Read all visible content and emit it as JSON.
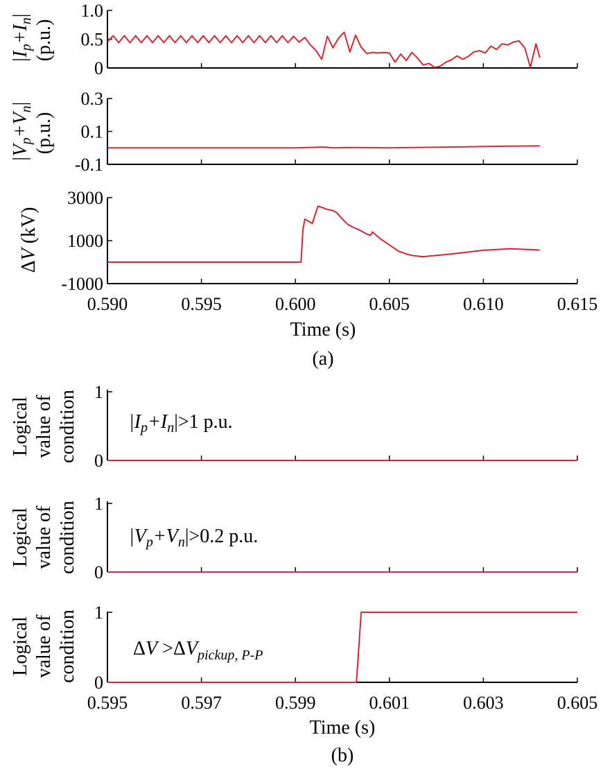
{
  "figure": {
    "caption_a": "(a)",
    "caption_b": "(b)"
  },
  "chart_data": [
    {
      "type": "line",
      "panel": "a1",
      "ylabel_top": "|I",
      "ylabel_sub_p": "p",
      "ylabel_plus": "+I",
      "ylabel_sub_n": "n",
      "ylabel_close": "|",
      "ylabel_unit": "(p.u.)",
      "xlim": [
        0.59,
        0.615
      ],
      "ylim": [
        0,
        1.0
      ],
      "yticks": [
        "1.0",
        "0.5",
        "0"
      ],
      "ytick_values": [
        1.0,
        0.5,
        0
      ],
      "color": "#d7262d",
      "series": [
        {
          "x": [
            0.59,
            0.5903,
            0.5906,
            0.5909,
            0.5912,
            0.5915,
            0.5918,
            0.5921,
            0.5924,
            0.5927,
            0.593,
            0.5933,
            0.5936,
            0.5939,
            0.5942,
            0.5945,
            0.5948,
            0.5951,
            0.5954,
            0.5957,
            0.596,
            0.5963,
            0.5966,
            0.5969,
            0.5972,
            0.5975,
            0.5978,
            0.5981,
            0.5984,
            0.5987,
            0.599,
            0.5993,
            0.5996,
            0.5999,
            0.6002,
            0.6005,
            0.6008,
            0.6011,
            0.6014,
            0.6017,
            0.602,
            0.6023,
            0.6026,
            0.6029,
            0.6032,
            0.6035,
            0.6038,
            0.6041,
            0.6044,
            0.6047,
            0.605,
            0.6053,
            0.6056,
            0.6059,
            0.6062,
            0.6065,
            0.6068,
            0.6071,
            0.6074,
            0.6077,
            0.608,
            0.6083,
            0.6086,
            0.6089,
            0.6092,
            0.6095,
            0.6098,
            0.6101,
            0.6104,
            0.6107,
            0.611,
            0.6113,
            0.6116,
            0.6119,
            0.6122,
            0.6125,
            0.6128,
            0.613
          ],
          "y": [
            0.45,
            0.56,
            0.44,
            0.56,
            0.44,
            0.56,
            0.44,
            0.56,
            0.44,
            0.56,
            0.44,
            0.56,
            0.44,
            0.56,
            0.44,
            0.56,
            0.44,
            0.56,
            0.44,
            0.56,
            0.44,
            0.56,
            0.44,
            0.56,
            0.44,
            0.56,
            0.44,
            0.56,
            0.44,
            0.56,
            0.44,
            0.56,
            0.44,
            0.55,
            0.45,
            0.53,
            0.4,
            0.3,
            0.15,
            0.55,
            0.35,
            0.52,
            0.62,
            0.28,
            0.57,
            0.36,
            0.25,
            0.27,
            0.26,
            0.27,
            0.26,
            0.1,
            0.24,
            0.13,
            0.27,
            0.17,
            0.05,
            0.08,
            0.01,
            0.03,
            0.1,
            0.14,
            0.21,
            0.15,
            0.2,
            0.28,
            0.3,
            0.26,
            0.38,
            0.32,
            0.42,
            0.4,
            0.45,
            0.47,
            0.35,
            0.01,
            0.42,
            0.18
          ]
        }
      ]
    },
    {
      "type": "line",
      "panel": "a2",
      "ylabel_top": "|V",
      "ylabel_sub_p": "p",
      "ylabel_plus": "+V",
      "ylabel_sub_n": "n",
      "ylabel_close": "|",
      "ylabel_unit": "(p.u.)",
      "xlim": [
        0.59,
        0.615
      ],
      "ylim": [
        -0.1,
        0.3
      ],
      "yticks": [
        "0.3",
        "0.1",
        "-0.1"
      ],
      "ytick_values": [
        0.3,
        0.1,
        -0.1
      ],
      "color": "#d7262d",
      "series": [
        {
          "x": [
            0.59,
            0.595,
            0.6,
            0.6015,
            0.602,
            0.603,
            0.605,
            0.607,
            0.609,
            0.611,
            0.613
          ],
          "y": [
            0.0,
            0.0,
            0.0,
            0.005,
            0.0,
            0.002,
            0.0,
            0.003,
            0.006,
            0.01,
            0.012
          ]
        }
      ]
    },
    {
      "type": "line",
      "panel": "a3",
      "ylabel_delta": "Δ",
      "ylabel_var": "V",
      "ylabel_unit": " (kV)",
      "xlabel": "Time (s)",
      "xlim": [
        0.59,
        0.615
      ],
      "ylim": [
        -1000,
        3000
      ],
      "yticks": [
        "3000",
        "1000",
        "-1000"
      ],
      "ytick_values": [
        3000,
        1000,
        -1000
      ],
      "xticks": [
        "0.590",
        "0.595",
        "0.600",
        "0.605",
        "0.610",
        "0.615"
      ],
      "xtick_values": [
        0.59,
        0.595,
        0.6,
        0.605,
        0.61,
        0.615
      ],
      "color": "#d7262d",
      "series": [
        {
          "x": [
            0.59,
            0.6003,
            0.6004,
            0.6005,
            0.6009,
            0.6012,
            0.6014,
            0.6017,
            0.602,
            0.6022,
            0.6025,
            0.6028,
            0.603,
            0.6034,
            0.6038,
            0.604,
            0.6041,
            0.6045,
            0.605,
            0.6055,
            0.606,
            0.6063,
            0.6068,
            0.607,
            0.608,
            0.609,
            0.61,
            0.611,
            0.6115,
            0.612,
            0.613
          ],
          "y": [
            0,
            0,
            1500,
            2000,
            1800,
            2600,
            2550,
            2450,
            2400,
            2300,
            2000,
            1750,
            1650,
            1500,
            1300,
            1250,
            1400,
            1100,
            800,
            500,
            350,
            300,
            250,
            270,
            350,
            450,
            550,
            600,
            620,
            600,
            560
          ]
        }
      ]
    },
    {
      "type": "line",
      "panel": "b1",
      "ylabel_lines": [
        "Logical",
        "value of",
        "condition"
      ],
      "annotation": "|I_p+I_n|>1 p.u.",
      "ann_bar": "|I",
      "ann_sub_p": "p",
      "ann_plus": "+I",
      "ann_sub_n": "n",
      "ann_rest": "|>1 p.u.",
      "xlim": [
        0.595,
        0.605
      ],
      "ylim": [
        0,
        1
      ],
      "yticks": [
        "1",
        "0"
      ],
      "ytick_values": [
        1,
        0
      ],
      "color": "#d7262d",
      "series": [
        {
          "x": [
            0.595,
            0.605
          ],
          "y": [
            0,
            0
          ]
        }
      ]
    },
    {
      "type": "line",
      "panel": "b2",
      "ylabel_lines": [
        "Logical",
        "value of",
        "condition"
      ],
      "annotation": "|V_p+V_n|>0.2 p.u.",
      "ann_bar": "|V",
      "ann_sub_p": "p",
      "ann_plus": "+V",
      "ann_sub_n": "n",
      "ann_rest": "|>0.2 p.u.",
      "xlim": [
        0.595,
        0.605
      ],
      "ylim": [
        0,
        1
      ],
      "yticks": [
        "1",
        "0"
      ],
      "ytick_values": [
        1,
        0
      ],
      "color": "#d7262d",
      "series": [
        {
          "x": [
            0.595,
            0.605
          ],
          "y": [
            0,
            0
          ]
        }
      ]
    },
    {
      "type": "line",
      "panel": "b3",
      "ylabel_lines": [
        "Logical",
        "value of",
        "condition"
      ],
      "annotation": "ΔV >ΔV_pickup, P-P",
      "ann_delta1": "Δ",
      "ann_v1": "V",
      "ann_gt": " >",
      "ann_delta2": "Δ",
      "ann_v2": "V",
      "ann_sub": "pickup",
      "ann_sub2": ", P-P",
      "xlabel": "Time (s)",
      "xlim": [
        0.595,
        0.605
      ],
      "ylim": [
        0,
        1
      ],
      "yticks": [
        "1",
        "0"
      ],
      "ytick_values": [
        1,
        0
      ],
      "xticks": [
        "0.595",
        "0.597",
        "0.599",
        "0.601",
        "0.603",
        "0.605"
      ],
      "xtick_values": [
        0.595,
        0.597,
        0.599,
        0.601,
        0.603,
        0.605
      ],
      "color": "#d7262d",
      "series": [
        {
          "x": [
            0.595,
            0.6003,
            0.6004,
            0.605
          ],
          "y": [
            0,
            0,
            1,
            1
          ]
        }
      ]
    }
  ]
}
